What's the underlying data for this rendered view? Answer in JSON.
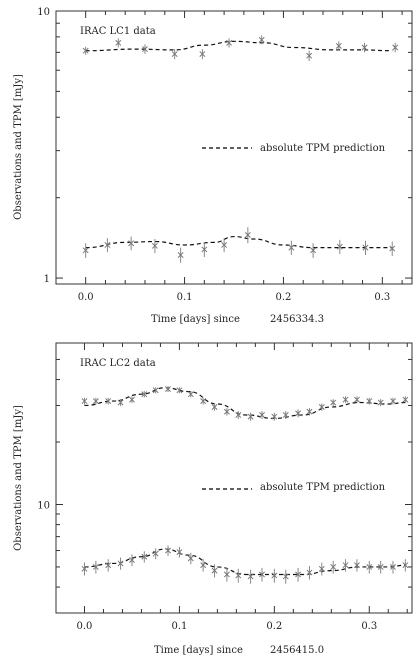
{
  "chart_data": [
    {
      "type": "scatter",
      "annotation": "IRAC LC1 data",
      "legend_label": "absolute TPM prediction",
      "xlabel": "Time [days] since",
      "xlabel_epoch": "2456334.3",
      "ylabel": "Observations and TPM [mJy]",
      "y_scale": "log",
      "xlim": [
        -0.03,
        0.33
      ],
      "ylim": [
        0.95,
        10
      ],
      "x_ticks": [
        "0.0",
        "0.1",
        "0.2",
        "0.3"
      ],
      "y_ticks": [
        "1",
        "10"
      ],
      "series": [
        {
          "name": "upper",
          "x": [
            0.0,
            0.033,
            0.06,
            0.09,
            0.118,
            0.145,
            0.178,
            0.226,
            0.256,
            0.282,
            0.313
          ],
          "y": [
            7.1,
            7.6,
            7.2,
            6.9,
            6.9,
            7.6,
            7.8,
            6.8,
            7.4,
            7.3,
            7.3
          ],
          "yerr": [
            0.25,
            0.3,
            0.3,
            0.3,
            0.3,
            0.3,
            0.3,
            0.3,
            0.3,
            0.3,
            0.3
          ],
          "model_x": [
            0.0,
            0.05,
            0.09,
            0.12,
            0.15,
            0.18,
            0.21,
            0.25,
            0.28,
            0.31
          ],
          "model_y": [
            7.1,
            7.2,
            7.15,
            7.45,
            7.7,
            7.6,
            7.3,
            7.15,
            7.15,
            7.1
          ]
        },
        {
          "name": "lower",
          "x": [
            0.0,
            0.022,
            0.046,
            0.07,
            0.096,
            0.12,
            0.14,
            0.164,
            0.208,
            0.23,
            0.257,
            0.283,
            0.31
          ],
          "y": [
            1.27,
            1.33,
            1.35,
            1.32,
            1.22,
            1.28,
            1.33,
            1.45,
            1.3,
            1.27,
            1.31,
            1.3,
            1.29
          ],
          "yerr": [
            0.08,
            0.08,
            0.08,
            0.08,
            0.08,
            0.08,
            0.08,
            0.1,
            0.08,
            0.08,
            0.08,
            0.08,
            0.08
          ],
          "model_x": [
            0.0,
            0.04,
            0.07,
            0.1,
            0.13,
            0.15,
            0.17,
            0.2,
            0.23,
            0.26,
            0.31
          ],
          "model_y": [
            1.3,
            1.36,
            1.37,
            1.33,
            1.36,
            1.43,
            1.4,
            1.33,
            1.3,
            1.3,
            1.3
          ]
        }
      ]
    },
    {
      "type": "scatter",
      "annotation": "IRAC LC2 data",
      "legend_label": "absolute TPM prediction",
      "xlabel": "Time [days] since",
      "xlabel_epoch": "2456415.0",
      "ylabel": "Observations and TPM [mJy]",
      "y_scale": "log",
      "xlim": [
        -0.03,
        0.345
      ],
      "ylim": [
        3.0,
        60
      ],
      "x_ticks": [
        "0.0",
        "0.1",
        "0.2",
        "0.3"
      ],
      "y_ticks": [
        "10"
      ],
      "series": [
        {
          "name": "upper",
          "x": [
            0.0,
            0.012,
            0.025,
            0.038,
            0.05,
            0.063,
            0.075,
            0.088,
            0.1,
            0.112,
            0.125,
            0.137,
            0.15,
            0.162,
            0.175,
            0.187,
            0.2,
            0.212,
            0.225,
            0.237,
            0.25,
            0.262,
            0.275,
            0.287,
            0.3,
            0.312,
            0.325,
            0.338
          ],
          "y": [
            31.5,
            31.5,
            31.5,
            31.0,
            32.0,
            34.0,
            35.5,
            36.0,
            35.5,
            34.0,
            31.5,
            29.5,
            28.0,
            27.0,
            26.5,
            27.0,
            26.5,
            27.0,
            27.5,
            28.0,
            29.5,
            31.0,
            32.0,
            32.0,
            31.5,
            31.0,
            31.5,
            32.0
          ],
          "yerr": [
            1.2,
            1.2,
            1.2,
            1.2,
            1.2,
            1.2,
            1.2,
            1.2,
            1.2,
            1.2,
            1.2,
            1.2,
            1.2,
            1.2,
            1.2,
            1.2,
            1.2,
            1.2,
            1.2,
            1.2,
            1.2,
            1.2,
            1.2,
            1.2,
            1.2,
            1.2,
            1.2,
            1.2
          ],
          "model_x": [
            0.0,
            0.03,
            0.06,
            0.085,
            0.11,
            0.14,
            0.17,
            0.2,
            0.23,
            0.26,
            0.29,
            0.32,
            0.338
          ],
          "model_y": [
            30.0,
            31.5,
            34.0,
            36.5,
            35.0,
            30.5,
            27.0,
            26.0,
            27.0,
            29.5,
            31.0,
            30.5,
            31.0
          ]
        },
        {
          "name": "lower",
          "x": [
            0.0,
            0.012,
            0.025,
            0.038,
            0.05,
            0.063,
            0.075,
            0.088,
            0.1,
            0.112,
            0.125,
            0.137,
            0.15,
            0.162,
            0.175,
            0.187,
            0.2,
            0.212,
            0.225,
            0.237,
            0.25,
            0.262,
            0.275,
            0.287,
            0.3,
            0.312,
            0.325,
            0.338
          ],
          "y": [
            4.9,
            5.0,
            5.1,
            5.2,
            5.4,
            5.6,
            5.8,
            6.0,
            5.9,
            5.5,
            5.1,
            4.8,
            4.6,
            4.55,
            4.5,
            4.6,
            4.55,
            4.5,
            4.6,
            4.7,
            4.9,
            5.0,
            5.1,
            5.1,
            5.0,
            5.0,
            5.0,
            5.1
          ],
          "yerr": [
            0.35,
            0.35,
            0.35,
            0.35,
            0.35,
            0.35,
            0.35,
            0.35,
            0.35,
            0.35,
            0.35,
            0.35,
            0.35,
            0.35,
            0.35,
            0.35,
            0.35,
            0.35,
            0.35,
            0.35,
            0.35,
            0.35,
            0.35,
            0.35,
            0.35,
            0.35,
            0.35,
            0.35
          ],
          "model_x": [
            0.0,
            0.03,
            0.06,
            0.085,
            0.11,
            0.14,
            0.17,
            0.2,
            0.23,
            0.26,
            0.29,
            0.32,
            0.338
          ],
          "model_y": [
            5.0,
            5.2,
            5.6,
            6.1,
            5.7,
            5.0,
            4.6,
            4.6,
            4.6,
            4.8,
            5.0,
            5.0,
            5.1
          ]
        }
      ]
    }
  ]
}
